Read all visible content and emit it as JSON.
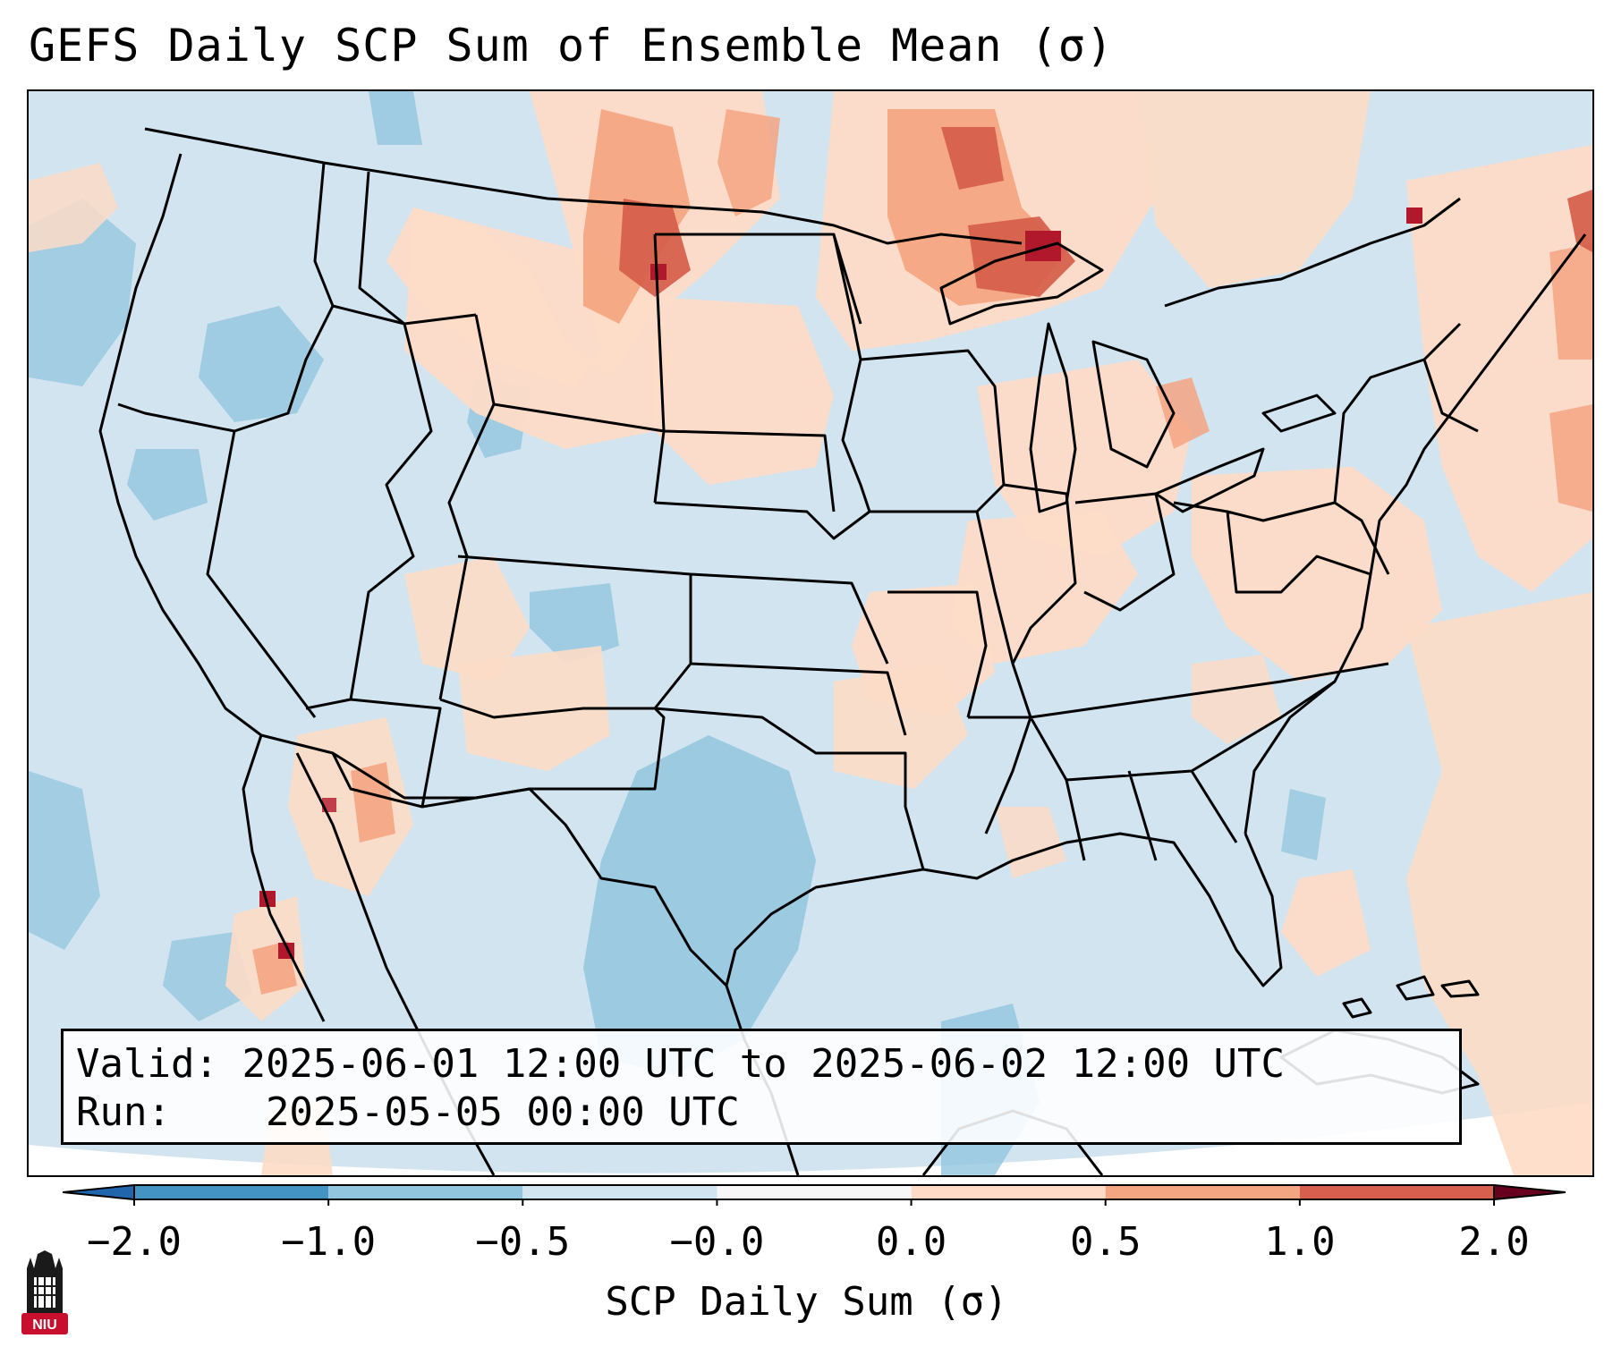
{
  "title": "GEFS Daily SCP Sum of Ensemble Mean (σ)",
  "info": {
    "valid_label": "Valid:",
    "valid_value": "2025-06-01 12:00 UTC to 2025-06-02 12:00 UTC",
    "run_label": "Run:",
    "run_value": "2025-05-05 00:00 UTC"
  },
  "colorbar": {
    "label": "SCP Daily Sum (σ)",
    "ticks": [
      "−2.0",
      "−1.0",
      "−0.5",
      "−0.0",
      "0.0",
      "0.5",
      "1.0",
      "2.0"
    ],
    "colors": [
      "#4393c3",
      "#92c5de",
      "#d1e5f0",
      "#f7f7f7",
      "#fddbc7",
      "#f4a582",
      "#d6604d",
      "#b2182b"
    ],
    "extend": "both"
  },
  "map": {
    "projection": "lambert-conformal",
    "region": "CONUS",
    "background_color": "#d1e5f0",
    "boundaries": [
      "coastlines",
      "country borders",
      "state borders"
    ]
  },
  "logo": {
    "text": "NIU",
    "icon": "university-tower-icon",
    "color": "#c8102e"
  }
}
